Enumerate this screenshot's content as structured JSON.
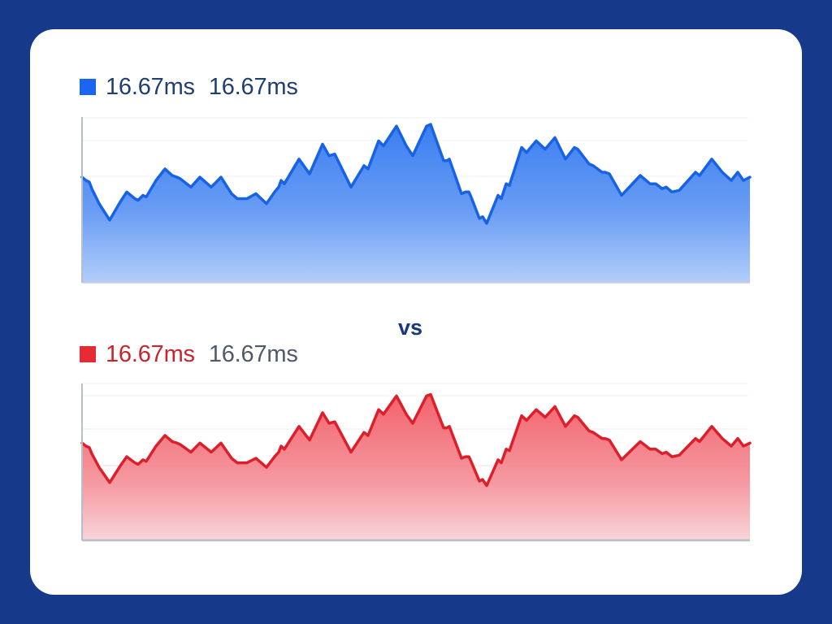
{
  "comparison": {
    "separator_label": "vs",
    "top": {
      "legend": {
        "value_primary": "16.67ms",
        "value_secondary": "16.67ms",
        "color": "#1a66f2"
      }
    },
    "bottom": {
      "legend": {
        "value_primary": "16.67ms",
        "value_secondary": "16.67ms",
        "color": "#e62b35"
      }
    }
  },
  "chart_data": [
    {
      "type": "area",
      "title": "",
      "legend": [
        "16.67ms",
        "16.67ms"
      ],
      "series_color": "#1a66f2",
      "grid": true,
      "xlabel": "",
      "ylabel": "",
      "ylim": [
        0,
        100
      ],
      "x": [
        0,
        5,
        9,
        12,
        21,
        34,
        47,
        55,
        65,
        69,
        75,
        79,
        91,
        102,
        111,
        117,
        121,
        134,
        145,
        159,
        171,
        184,
        191,
        199,
        203,
        214,
        227,
        237,
        242,
        245,
        249,
        267,
        280,
        296,
        304,
        311,
        331,
        347,
        352,
        365,
        371,
        387,
        399,
        407,
        424,
        429,
        445,
        449,
        452,
        467,
        472,
        476,
        478,
        489,
        493,
        498,
        512,
        516,
        522,
        526,
        541,
        547,
        559,
        570,
        582,
        595,
        606,
        610,
        624,
        629,
        640,
        644,
        649,
        664,
        687,
        699,
        706,
        714,
        719,
        726,
        735,
        755,
        760,
        775,
        788,
        799,
        807,
        814,
        822
      ],
      "values": [
        64,
        62,
        61,
        57,
        48,
        38,
        49,
        55,
        51,
        50,
        53,
        52,
        62,
        69,
        65,
        64,
        63,
        58,
        64,
        58,
        64,
        54,
        51,
        51,
        51,
        54,
        48,
        55,
        58,
        62,
        60,
        75,
        66,
        84,
        77,
        78,
        58,
        71,
        69,
        86,
        83,
        95,
        83,
        77,
        95,
        96,
        74,
        74,
        75,
        54,
        55,
        55,
        53,
        39,
        40,
        36,
        53,
        51,
        60,
        59,
        82,
        79,
        86,
        81,
        88,
        75,
        82,
        81,
        72,
        71,
        67,
        67,
        66,
        53,
        65,
        60,
        60,
        57,
        58,
        55,
        56,
        67,
        65,
        75,
        67,
        62,
        67,
        62,
        64
      ]
    },
    {
      "type": "area",
      "title": "",
      "legend": [
        "16.67ms",
        "16.67ms"
      ],
      "series_color": "#e62b35",
      "grid": true,
      "xlabel": "",
      "ylabel": "",
      "ylim": [
        0,
        100
      ],
      "x": [
        0,
        5,
        9,
        12,
        21,
        34,
        47,
        55,
        65,
        69,
        75,
        79,
        91,
        102,
        111,
        117,
        121,
        134,
        145,
        159,
        171,
        184,
        191,
        199,
        203,
        214,
        227,
        237,
        242,
        245,
        249,
        267,
        280,
        296,
        304,
        311,
        331,
        347,
        352,
        365,
        371,
        387,
        399,
        407,
        424,
        429,
        445,
        449,
        452,
        467,
        472,
        476,
        478,
        489,
        493,
        498,
        512,
        516,
        522,
        526,
        541,
        547,
        559,
        570,
        582,
        595,
        606,
        610,
        624,
        629,
        640,
        644,
        649,
        664,
        687,
        699,
        706,
        714,
        719,
        726,
        735,
        755,
        760,
        775,
        788,
        799,
        807,
        814,
        822
      ],
      "values": [
        64,
        62,
        61,
        57,
        48,
        38,
        49,
        55,
        51,
        50,
        53,
        52,
        62,
        69,
        65,
        64,
        63,
        58,
        64,
        58,
        64,
        54,
        51,
        51,
        51,
        54,
        48,
        55,
        58,
        62,
        60,
        75,
        66,
        84,
        77,
        78,
        58,
        71,
        69,
        86,
        83,
        95,
        83,
        77,
        95,
        96,
        74,
        74,
        75,
        54,
        55,
        55,
        53,
        39,
        40,
        36,
        53,
        51,
        60,
        59,
        82,
        79,
        86,
        81,
        88,
        75,
        82,
        81,
        72,
        71,
        67,
        67,
        66,
        53,
        65,
        60,
        60,
        57,
        58,
        55,
        56,
        67,
        65,
        75,
        67,
        62,
        67,
        62,
        64
      ]
    }
  ]
}
